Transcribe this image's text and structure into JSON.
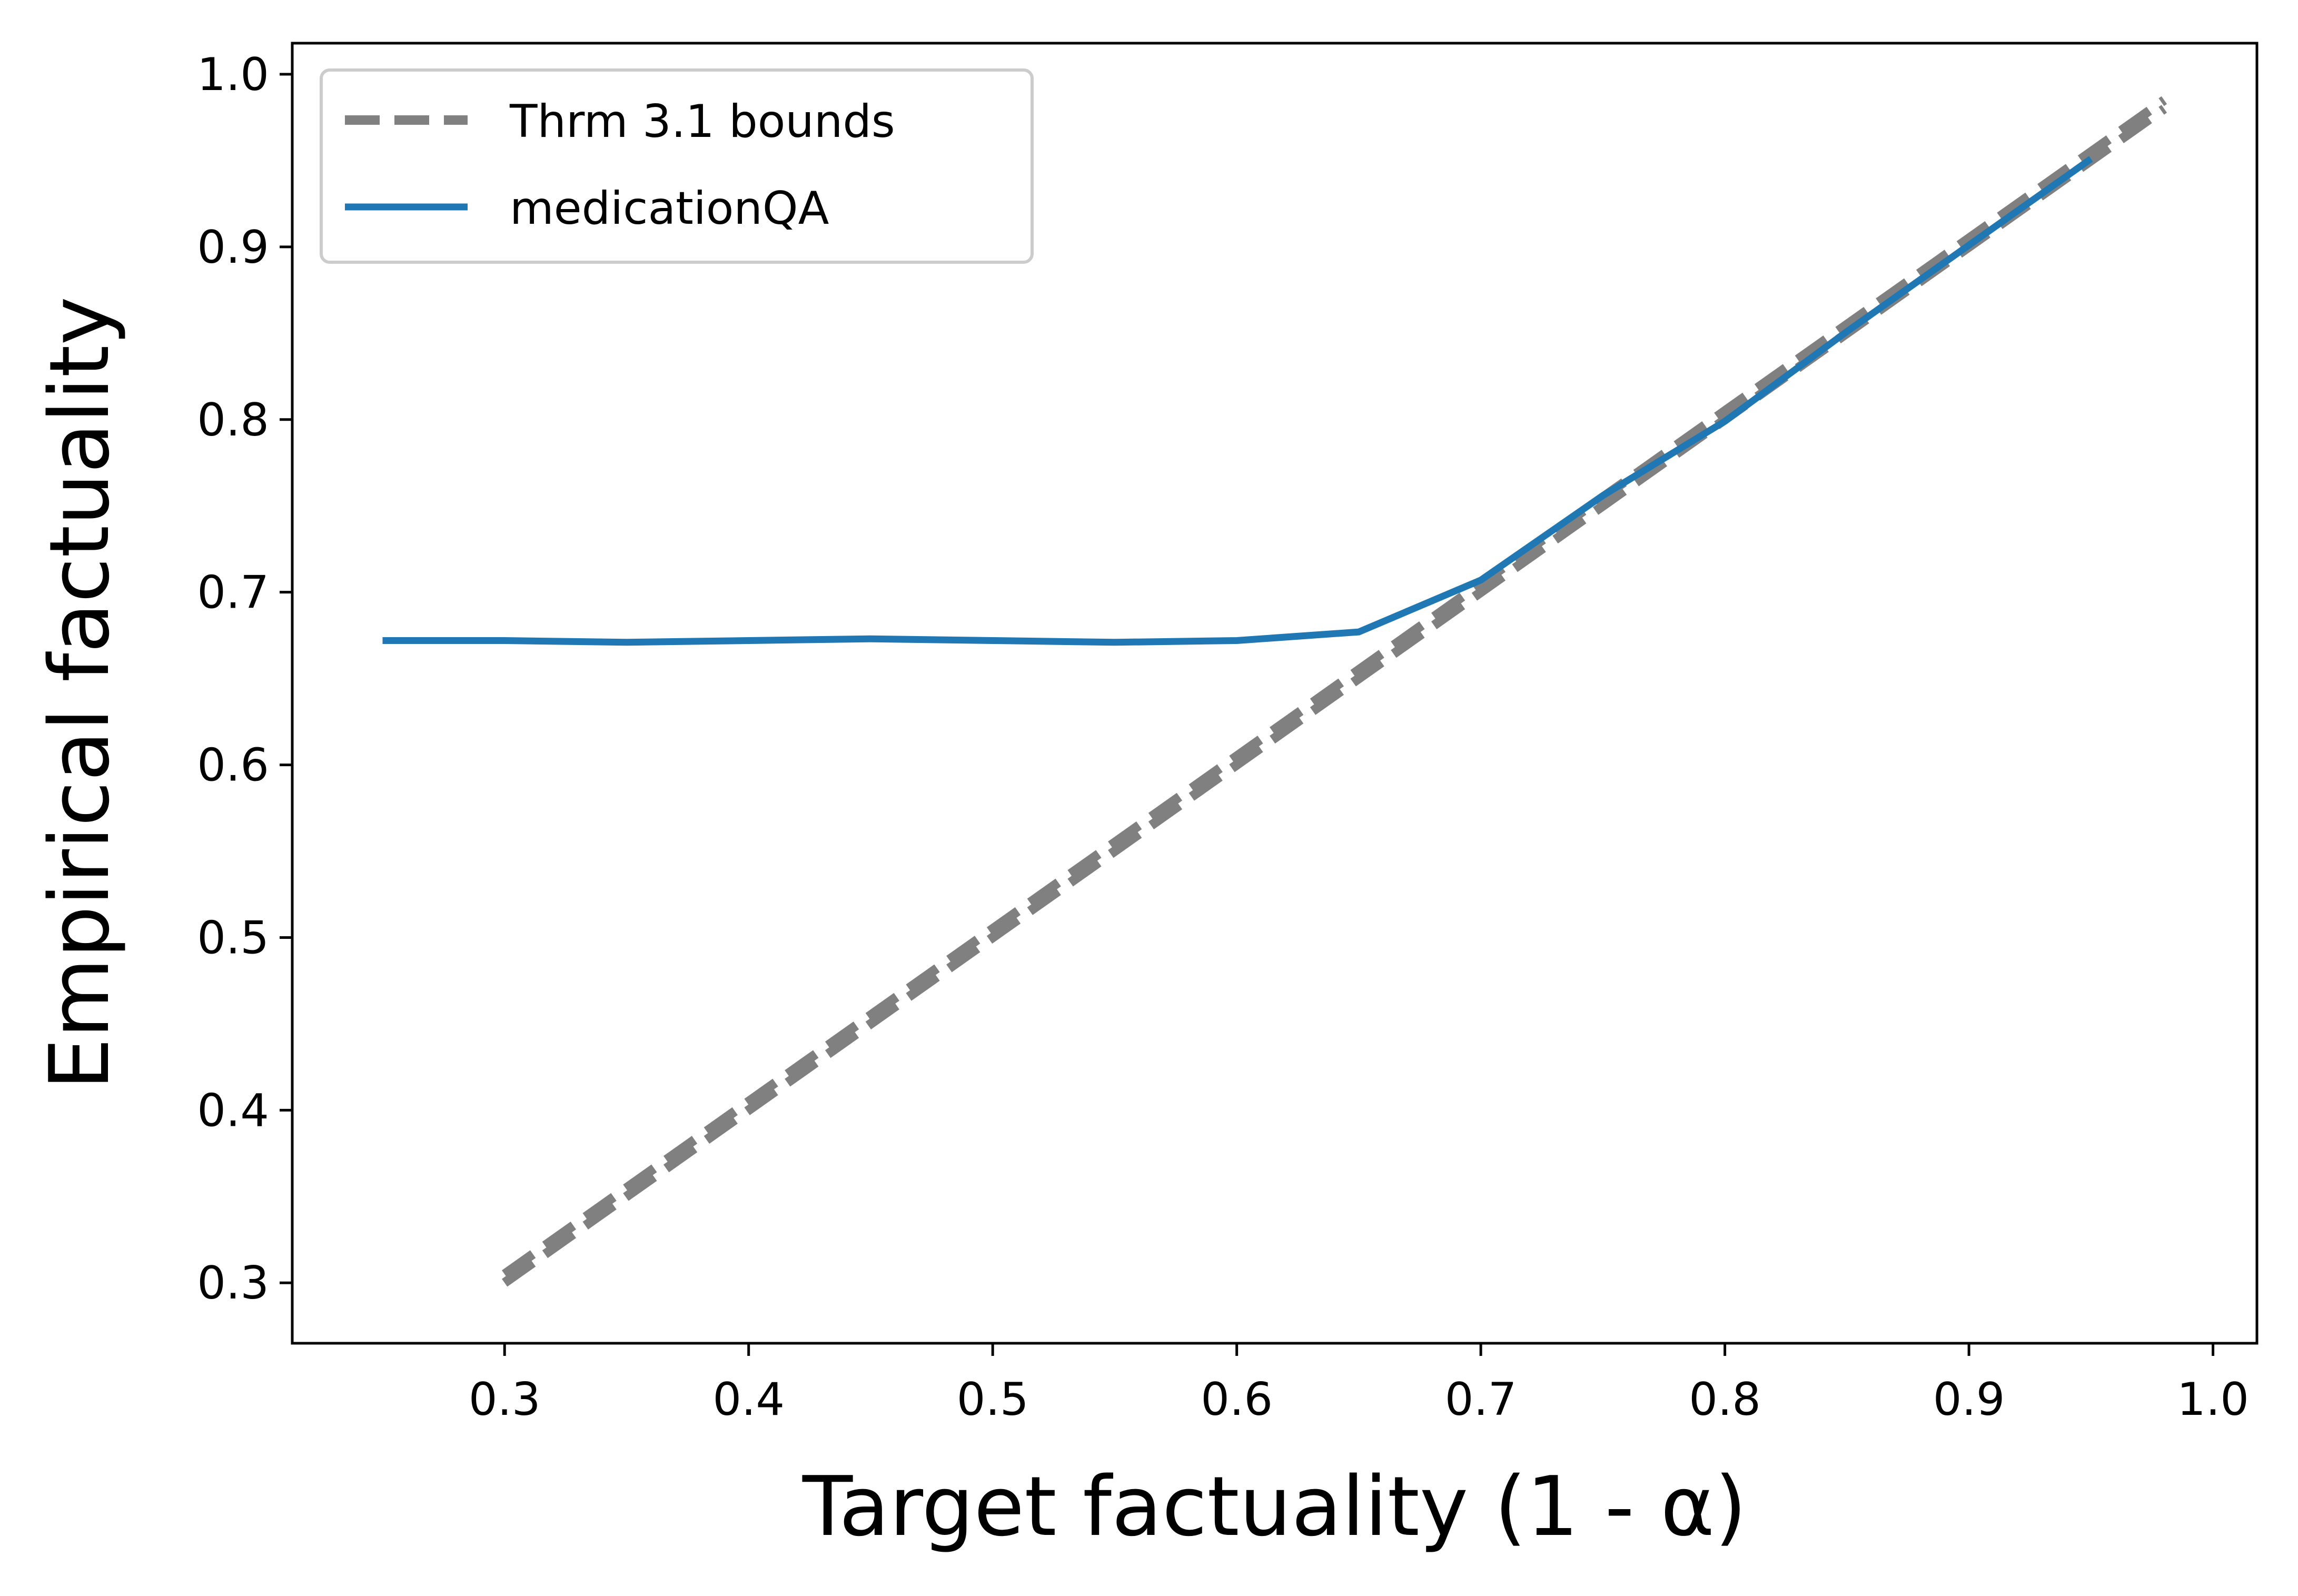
{
  "chart_data": {
    "type": "line",
    "title": "",
    "xlabel": "Target factuality (1 - α)",
    "ylabel": "Empirical factuality",
    "xlim": [
      0.213,
      1.018
    ],
    "ylim": [
      0.265,
      1.018
    ],
    "xticks": [
      0.3,
      0.4,
      0.5,
      0.6,
      0.7,
      0.8,
      0.9,
      1.0
    ],
    "xtick_labels": [
      "0.3",
      "0.4",
      "0.5",
      "0.6",
      "0.7",
      "0.8",
      "0.9",
      "1.0"
    ],
    "yticks": [
      0.3,
      0.4,
      0.5,
      0.6,
      0.7,
      0.8,
      0.9,
      1.0
    ],
    "ytick_labels": [
      "0.3",
      "0.4",
      "0.5",
      "0.6",
      "0.7",
      "0.8",
      "0.9",
      "1.0"
    ],
    "grid": false,
    "legend_position": "top-left",
    "series": [
      {
        "name": "Thrm 3.1 bounds",
        "style": "dashed",
        "color": "#808080",
        "x": [
          0.3,
          0.98
        ],
        "y": [
          0.3,
          0.98
        ]
      },
      {
        "name": "Thrm 3.1 bounds",
        "style": "dashed",
        "color": "#808080",
        "legend": false,
        "x": [
          0.3,
          0.98
        ],
        "y": [
          0.305,
          0.985
        ]
      },
      {
        "name": "medicationQA",
        "style": "solid",
        "color": "#1f77b4",
        "x": [
          0.25,
          0.3,
          0.35,
          0.4,
          0.45,
          0.5,
          0.55,
          0.6,
          0.65,
          0.7,
          0.75,
          0.8,
          0.85,
          0.9,
          0.95
        ],
        "y": [
          0.672,
          0.672,
          0.671,
          0.672,
          0.673,
          0.672,
          0.671,
          0.672,
          0.677,
          0.707,
          0.756,
          0.799,
          0.851,
          0.901,
          0.951
        ]
      }
    ]
  }
}
